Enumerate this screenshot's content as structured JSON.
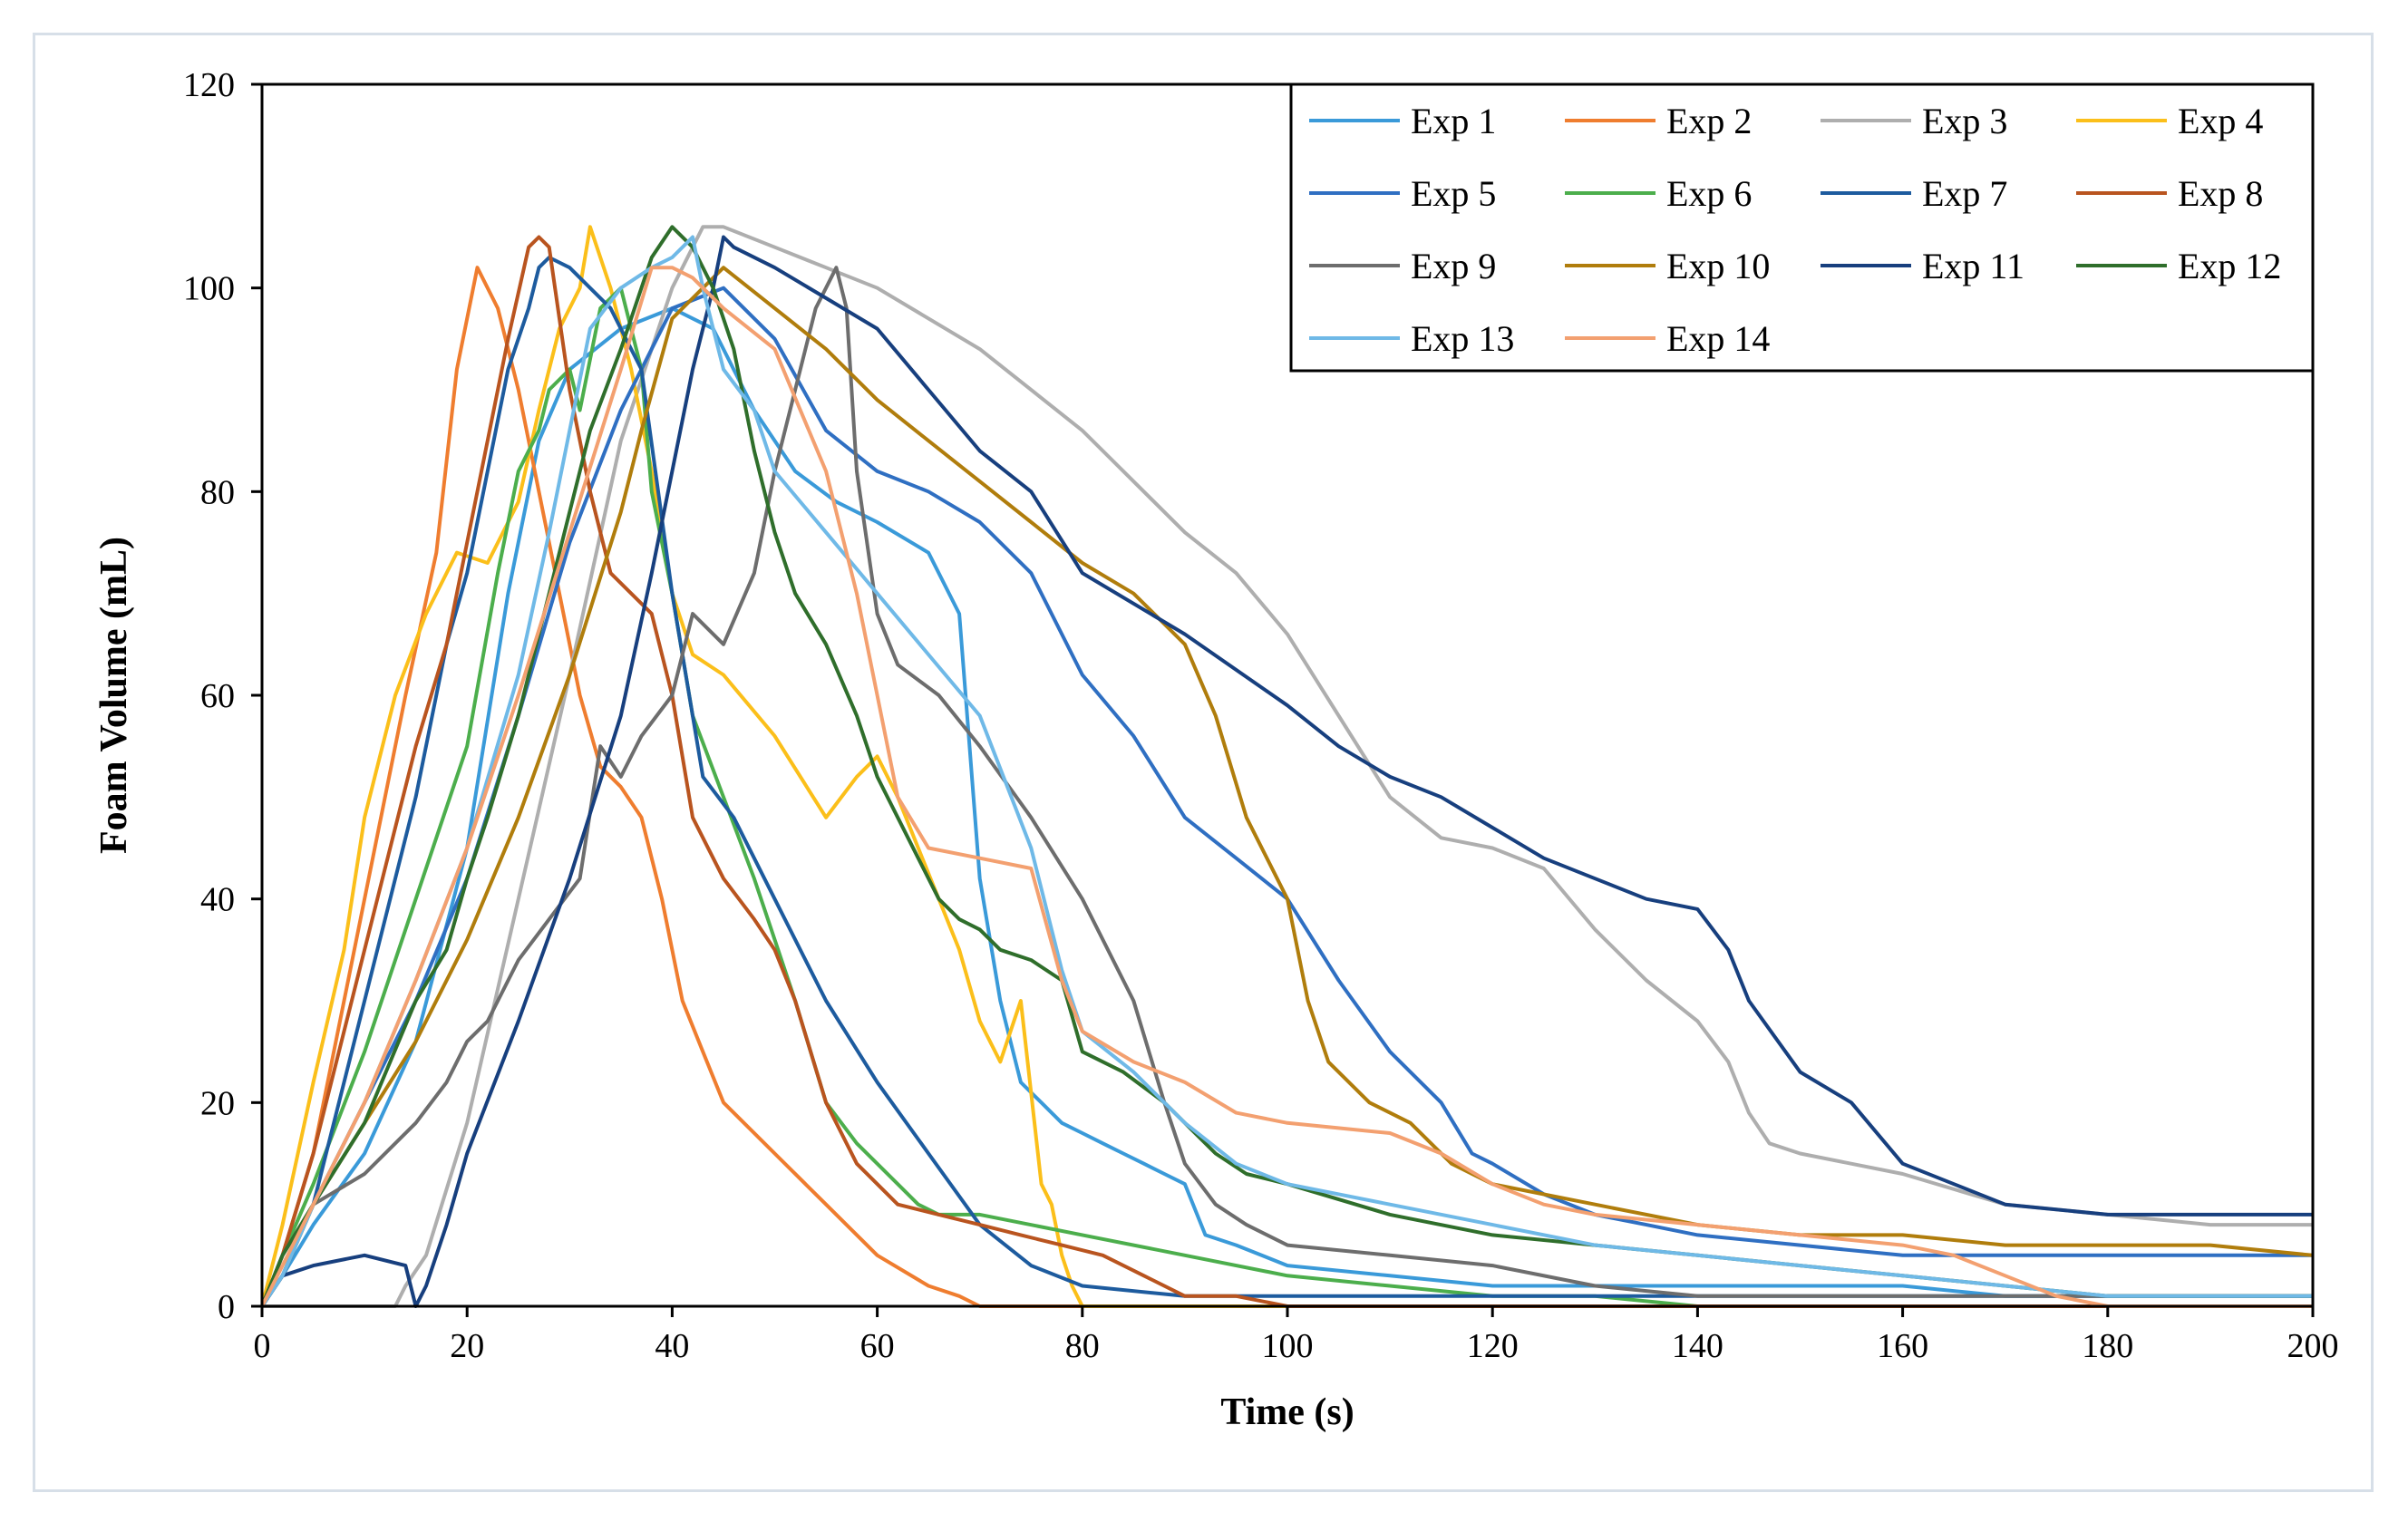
{
  "chart_data": {
    "type": "line",
    "title": "",
    "xlabel": "Time (s)",
    "ylabel": "Foam Volume (mL)",
    "xlim": [
      0,
      200
    ],
    "ylim": [
      0,
      120
    ],
    "xticks": [
      "0",
      "20",
      "40",
      "60",
      "80",
      "100",
      "120",
      "140",
      "160",
      "180",
      "200"
    ],
    "yticks": [
      "0",
      "20",
      "40",
      "60",
      "80",
      "100",
      "120"
    ],
    "grid": false,
    "legend_position": "top-right",
    "series": [
      {
        "name": "Exp 1",
        "color": "#3a9ad9",
        "x": [
          0,
          2,
          5,
          10,
          15,
          20,
          24,
          27,
          30,
          35,
          40,
          44,
          48,
          52,
          56,
          60,
          65,
          68,
          70,
          72,
          74,
          76,
          78,
          80,
          82,
          84,
          86,
          88,
          90,
          92,
          95,
          100,
          110,
          120,
          130,
          140,
          150,
          160,
          170,
          180,
          190,
          200
        ],
        "y": [
          0,
          3,
          8,
          15,
          26,
          45,
          70,
          85,
          92,
          96,
          98,
          96,
          88,
          82,
          79,
          77,
          74,
          68,
          42,
          30,
          22,
          20,
          18,
          17,
          16,
          15,
          14,
          13,
          12,
          7,
          6,
          4,
          3,
          2,
          2,
          2,
          2,
          2,
          1,
          1,
          1,
          1
        ]
      },
      {
        "name": "Exp 2",
        "color": "#ef7d2f",
        "x": [
          0,
          2,
          5,
          8,
          11,
          14,
          17,
          19,
          21,
          23,
          25,
          27,
          29,
          31,
          33,
          35,
          37,
          39,
          41,
          43,
          45,
          50,
          55,
          60,
          65,
          68,
          70,
          80,
          200
        ],
        "y": [
          0,
          5,
          15,
          30,
          45,
          60,
          74,
          92,
          102,
          98,
          90,
          80,
          70,
          60,
          53,
          51,
          48,
          40,
          30,
          25,
          20,
          15,
          10,
          5,
          2,
          1,
          0,
          0,
          0
        ]
      },
      {
        "name": "Exp 3",
        "color": "#aeaeae",
        "x": [
          0,
          10,
          13,
          14,
          16,
          20,
          25,
          30,
          35,
          40,
          43,
          45,
          50,
          55,
          60,
          70,
          80,
          90,
          95,
          100,
          105,
          110,
          115,
          120,
          125,
          130,
          135,
          140,
          143,
          145,
          147,
          150,
          160,
          170,
          180,
          190,
          200
        ],
        "y": [
          0,
          0,
          0,
          2,
          5,
          18,
          40,
          62,
          85,
          100,
          106,
          106,
          104,
          102,
          100,
          94,
          86,
          76,
          72,
          66,
          58,
          50,
          46,
          45,
          43,
          37,
          32,
          28,
          24,
          19,
          16,
          15,
          13,
          10,
          9,
          8,
          8
        ]
      },
      {
        "name": "Exp 4",
        "color": "#fbbf1a",
        "x": [
          0,
          2,
          5,
          8,
          10,
          13,
          16,
          19,
          22,
          25,
          27,
          29,
          31,
          32,
          34,
          36,
          38,
          40,
          42,
          45,
          50,
          55,
          58,
          60,
          62,
          64,
          66,
          68,
          70,
          72,
          74,
          76,
          77,
          78,
          79,
          80,
          200
        ],
        "y": [
          0,
          8,
          22,
          35,
          48,
          60,
          68,
          74,
          73,
          79,
          88,
          96,
          100,
          106,
          100,
          92,
          82,
          70,
          64,
          62,
          56,
          48,
          52,
          54,
          50,
          45,
          40,
          35,
          28,
          24,
          30,
          12,
          10,
          5,
          2,
          0,
          0
        ]
      },
      {
        "name": "Exp 5",
        "color": "#2f6fc2",
        "x": [
          0,
          2,
          5,
          10,
          15,
          20,
          25,
          30,
          35,
          40,
          45,
          50,
          55,
          60,
          65,
          70,
          75,
          80,
          85,
          90,
          95,
          100,
          105,
          110,
          115,
          118,
          120,
          125,
          130,
          135,
          140,
          150,
          160,
          170,
          180,
          190,
          200
        ],
        "y": [
          0,
          3,
          10,
          20,
          30,
          42,
          58,
          75,
          88,
          98,
          100,
          95,
          86,
          82,
          80,
          77,
          72,
          62,
          56,
          48,
          44,
          40,
          32,
          25,
          20,
          15,
          14,
          11,
          9,
          8,
          7,
          6,
          5,
          5,
          5,
          5,
          5
        ]
      },
      {
        "name": "Exp 6",
        "color": "#4cae4c",
        "x": [
          0,
          2,
          5,
          10,
          15,
          20,
          23,
          25,
          27,
          28,
          30,
          31,
          33,
          35,
          37,
          38,
          40,
          42,
          45,
          48,
          52,
          55,
          58,
          62,
          64,
          66,
          70,
          80,
          90,
          100,
          110,
          120,
          130,
          140,
          200
        ],
        "y": [
          0,
          5,
          12,
          25,
          40,
          55,
          72,
          82,
          86,
          90,
          92,
          88,
          98,
          100,
          92,
          80,
          70,
          58,
          50,
          42,
          30,
          20,
          16,
          12,
          10,
          9,
          9,
          7,
          5,
          3,
          2,
          1,
          1,
          0,
          0
        ]
      },
      {
        "name": "Exp 7",
        "color": "#1d5b9e",
        "x": [
          0,
          2,
          5,
          10,
          15,
          18,
          20,
          22,
          24,
          26,
          27,
          28,
          30,
          32,
          34,
          35,
          37,
          40,
          43,
          46,
          50,
          55,
          60,
          65,
          70,
          75,
          80,
          90,
          200
        ],
        "y": [
          0,
          3,
          10,
          30,
          50,
          65,
          72,
          82,
          92,
          98,
          102,
          103,
          102,
          100,
          98,
          96,
          92,
          70,
          52,
          48,
          40,
          30,
          22,
          15,
          8,
          4,
          2,
          1,
          1
        ]
      },
      {
        "name": "Exp 8",
        "color": "#b9541f",
        "x": [
          0,
          2,
          5,
          10,
          15,
          18,
          20,
          22,
          24,
          26,
          27,
          28,
          30,
          32,
          34,
          36,
          38,
          40,
          42,
          45,
          48,
          50,
          52,
          55,
          58,
          62,
          66,
          70,
          74,
          78,
          82,
          86,
          90,
          95,
          100,
          200
        ],
        "y": [
          0,
          5,
          15,
          35,
          55,
          65,
          75,
          85,
          95,
          104,
          105,
          104,
          90,
          80,
          72,
          70,
          68,
          60,
          48,
          42,
          38,
          35,
          30,
          20,
          14,
          10,
          9,
          8,
          7,
          6,
          5,
          3,
          1,
          1,
          0,
          0
        ]
      },
      {
        "name": "Exp 9",
        "color": "#6d6d6d",
        "x": [
          0,
          2,
          5,
          10,
          15,
          18,
          20,
          22,
          25,
          28,
          31,
          33,
          35,
          37,
          40,
          42,
          45,
          48,
          50,
          52,
          54,
          56,
          57,
          58,
          60,
          62,
          66,
          70,
          75,
          80,
          85,
          88,
          90,
          93,
          96,
          100,
          110,
          120,
          130,
          140,
          150,
          160,
          170,
          180,
          200
        ],
        "y": [
          0,
          5,
          10,
          13,
          18,
          22,
          26,
          28,
          34,
          38,
          42,
          55,
          52,
          56,
          60,
          68,
          65,
          72,
          82,
          90,
          98,
          102,
          98,
          82,
          68,
          63,
          60,
          55,
          48,
          40,
          30,
          20,
          14,
          10,
          8,
          6,
          5,
          4,
          2,
          1,
          1,
          1,
          1,
          1,
          1
        ]
      },
      {
        "name": "Exp 10",
        "color": "#b07d0c",
        "x": [
          0,
          2,
          5,
          10,
          15,
          20,
          25,
          30,
          35,
          37,
          40,
          45,
          50,
          55,
          60,
          65,
          70,
          75,
          80,
          85,
          90,
          93,
          96,
          100,
          102,
          104,
          108,
          112,
          116,
          120,
          130,
          140,
          150,
          160,
          170,
          180,
          190,
          200
        ],
        "y": [
          0,
          3,
          10,
          18,
          26,
          36,
          48,
          62,
          78,
          86,
          97,
          102,
          98,
          94,
          89,
          85,
          81,
          77,
          73,
          70,
          65,
          58,
          48,
          40,
          30,
          24,
          20,
          18,
          14,
          12,
          10,
          8,
          7,
          7,
          6,
          6,
          6,
          5
        ]
      },
      {
        "name": "Exp 11",
        "color": "#173f7e",
        "x": [
          0,
          2,
          5,
          10,
          14,
          15,
          16,
          18,
          20,
          25,
          30,
          35,
          38,
          40,
          42,
          44,
          45,
          46,
          50,
          55,
          60,
          65,
          70,
          75,
          80,
          90,
          100,
          105,
          110,
          115,
          120,
          125,
          130,
          135,
          140,
          143,
          145,
          150,
          155,
          160,
          165,
          170,
          180,
          190,
          200
        ],
        "y": [
          0,
          3,
          4,
          5,
          4,
          0,
          2,
          8,
          15,
          28,
          42,
          58,
          72,
          82,
          92,
          100,
          105,
          104,
          102,
          99,
          96,
          90,
          84,
          80,
          72,
          66,
          59,
          55,
          52,
          50,
          47,
          44,
          42,
          40,
          39,
          35,
          30,
          23,
          20,
          14,
          12,
          10,
          9,
          9,
          9
        ]
      },
      {
        "name": "Exp 12",
        "color": "#2f6e2b",
        "x": [
          0,
          2,
          5,
          10,
          15,
          18,
          20,
          22,
          25,
          28,
          30,
          32,
          35,
          38,
          40,
          42,
          44,
          46,
          48,
          50,
          52,
          55,
          58,
          60,
          62,
          64,
          66,
          68,
          70,
          72,
          75,
          78,
          80,
          84,
          88,
          90,
          93,
          96,
          100,
          110,
          120,
          130,
          140,
          150,
          160,
          170,
          180,
          200
        ],
        "y": [
          0,
          5,
          10,
          18,
          30,
          35,
          42,
          48,
          58,
          70,
          78,
          86,
          94,
          103,
          106,
          104,
          100,
          94,
          84,
          76,
          70,
          65,
          58,
          52,
          48,
          44,
          40,
          38,
          37,
          35,
          34,
          32,
          25,
          23,
          20,
          18,
          15,
          13,
          12,
          9,
          7,
          6,
          5,
          4,
          3,
          2,
          1,
          1
        ]
      },
      {
        "name": "Exp 13",
        "color": "#6fb9e7",
        "x": [
          0,
          2,
          5,
          10,
          15,
          20,
          25,
          28,
          30,
          32,
          35,
          38,
          40,
          42,
          43,
          45,
          48,
          50,
          55,
          60,
          65,
          70,
          75,
          78,
          80,
          85,
          90,
          95,
          100,
          110,
          120,
          130,
          140,
          150,
          160,
          170,
          180,
          190,
          200
        ],
        "y": [
          0,
          3,
          10,
          20,
          32,
          45,
          62,
          76,
          86,
          96,
          100,
          102,
          103,
          105,
          100,
          92,
          88,
          82,
          76,
          70,
          64,
          58,
          45,
          33,
          27,
          23,
          18,
          14,
          12,
          10,
          8,
          6,
          5,
          4,
          3,
          2,
          1,
          1,
          1
        ]
      },
      {
        "name": "Exp 14",
        "color": "#f3a070",
        "x": [
          0,
          2,
          5,
          10,
          15,
          20,
          25,
          30,
          35,
          38,
          40,
          42,
          45,
          50,
          55,
          58,
          60,
          62,
          65,
          70,
          75,
          78,
          80,
          85,
          90,
          95,
          100,
          110,
          115,
          120,
          125,
          130,
          140,
          150,
          160,
          165,
          170,
          175,
          180,
          200
        ],
        "y": [
          0,
          4,
          10,
          20,
          32,
          45,
          60,
          76,
          92,
          102,
          102,
          101,
          98,
          94,
          82,
          70,
          60,
          50,
          45,
          44,
          43,
          32,
          27,
          24,
          22,
          19,
          18,
          17,
          15,
          12,
          10,
          9,
          8,
          7,
          6,
          5,
          3,
          1,
          0,
          0
        ]
      }
    ]
  }
}
